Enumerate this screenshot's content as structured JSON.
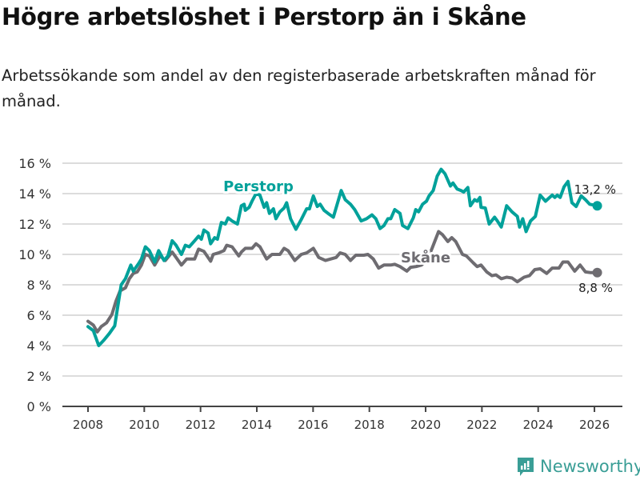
{
  "header": {
    "title": "Högre arbetslöshet i Perstorp än i Skåne",
    "subtitle": "Arbetssökande som andel av den registerbaserade arbetskraften månad för månad."
  },
  "logo": {
    "text": "Newsworthy",
    "icon": "bar-chart-icon",
    "color": "#3a9e96"
  },
  "chart_data": {
    "type": "line",
    "title": "Högre arbetslöshet i Perstorp än i Skåne",
    "xlabel": "",
    "ylabel": "",
    "xlim": [
      2007.5,
      2027
    ],
    "ylim": [
      0,
      16
    ],
    "grid": true,
    "x_ticks": [
      2008,
      2010,
      2012,
      2014,
      2016,
      2018,
      2020,
      2022,
      2024,
      2026
    ],
    "x_tick_labels": [
      "2008",
      "2010",
      "2012",
      "2014",
      "2016",
      "2018",
      "2020",
      "2022",
      "2024",
      "2026"
    ],
    "y_ticks": [
      0,
      2,
      4,
      6,
      8,
      10,
      12,
      14,
      16
    ],
    "y_tick_labels": [
      "0 %",
      "2 %",
      "4 %",
      "6 %",
      "8 %",
      "10 %",
      "12 %",
      "14 %",
      "16 %"
    ],
    "series": [
      {
        "name": "Perstorp",
        "color": "#00a19a",
        "end_label": "13,2 %",
        "x": [
          2008.0,
          2008.19,
          2008.38,
          2008.57,
          2008.76,
          2008.95,
          2009.18,
          2009.33,
          2009.52,
          2009.61,
          2009.8,
          2009.9,
          2010.04,
          2010.18,
          2010.37,
          2010.51,
          2010.7,
          2010.84,
          2010.99,
          2011.13,
          2011.32,
          2011.46,
          2011.6,
          2011.79,
          2011.93,
          2012.03,
          2012.12,
          2012.27,
          2012.36,
          2012.5,
          2012.6,
          2012.74,
          2012.88,
          2012.98,
          2013.12,
          2013.31,
          2013.45,
          2013.55,
          2013.59,
          2013.73,
          2013.83,
          2013.97,
          2014.11,
          2014.26,
          2014.35,
          2014.45,
          2014.59,
          2014.68,
          2014.82,
          2014.97,
          2015.06,
          2015.2,
          2015.39,
          2015.58,
          2015.77,
          2015.87,
          2016.01,
          2016.15,
          2016.25,
          2016.39,
          2016.53,
          2016.72,
          2017.0,
          2017.14,
          2017.33,
          2017.48,
          2017.71,
          2017.9,
          2018.09,
          2018.23,
          2018.38,
          2018.52,
          2018.66,
          2018.76,
          2018.9,
          2019.09,
          2019.18,
          2019.37,
          2019.56,
          2019.65,
          2019.75,
          2019.89,
          2020.03,
          2020.12,
          2020.27,
          2020.41,
          2020.55,
          2020.69,
          2020.88,
          2020.97,
          2021.12,
          2021.26,
          2021.35,
          2021.5,
          2021.59,
          2021.74,
          2021.83,
          2021.93,
          2021.97,
          2022.12,
          2022.26,
          2022.45,
          2022.55,
          2022.69,
          2022.88,
          2023.07,
          2023.26,
          2023.34,
          2023.45,
          2023.57,
          2023.73,
          2023.9,
          2024.07,
          2024.26,
          2024.5,
          2024.59,
          2024.68,
          2024.78,
          2024.92,
          2025.06,
          2025.2,
          2025.35,
          2025.53,
          2025.68,
          2025.83,
          2026.1
        ],
        "values": [
          5.25,
          4.98,
          4.0,
          4.37,
          4.8,
          5.3,
          8.0,
          8.4,
          9.3,
          8.9,
          9.4,
          9.7,
          10.5,
          10.25,
          9.5,
          10.25,
          9.6,
          9.9,
          10.9,
          10.6,
          10.0,
          10.6,
          10.5,
          10.9,
          11.2,
          11.0,
          11.6,
          11.4,
          10.7,
          11.1,
          11.0,
          12.1,
          12.0,
          12.4,
          12.2,
          12.0,
          13.2,
          13.3,
          12.9,
          13.1,
          13.5,
          14.0,
          13.9,
          13.1,
          13.4,
          12.7,
          13.0,
          12.35,
          12.8,
          13.05,
          13.4,
          12.35,
          11.65,
          12.3,
          13.0,
          13.0,
          13.85,
          13.15,
          13.3,
          12.9,
          12.7,
          12.45,
          14.2,
          13.6,
          13.3,
          12.95,
          12.2,
          12.35,
          12.6,
          12.35,
          11.7,
          11.9,
          12.35,
          12.35,
          12.95,
          12.7,
          11.9,
          11.7,
          12.4,
          12.95,
          12.8,
          13.3,
          13.5,
          13.85,
          14.2,
          15.15,
          15.6,
          15.3,
          14.5,
          14.7,
          14.3,
          14.2,
          14.1,
          14.4,
          13.2,
          13.6,
          13.5,
          13.75,
          13.1,
          13.05,
          12.0,
          12.45,
          12.2,
          11.8,
          13.2,
          12.8,
          12.5,
          11.8,
          12.35,
          11.5,
          12.2,
          12.5,
          13.9,
          13.5,
          13.9,
          13.75,
          13.9,
          13.75,
          14.45,
          14.8,
          13.4,
          13.15,
          13.85,
          13.6,
          13.3,
          13.2
        ]
      },
      {
        "name": "Skåne",
        "color": "#6e6c71",
        "end_label": "8,8 %",
        "x": [
          2008.0,
          2008.19,
          2008.33,
          2008.47,
          2008.66,
          2008.85,
          2008.99,
          2009.14,
          2009.33,
          2009.47,
          2009.61,
          2009.75,
          2009.9,
          2010.04,
          2010.18,
          2010.37,
          2010.56,
          2010.75,
          2010.99,
          2011.13,
          2011.32,
          2011.51,
          2011.79,
          2011.93,
          2012.12,
          2012.36,
          2012.45,
          2012.64,
          2012.83,
          2012.93,
          2013.12,
          2013.36,
          2013.45,
          2013.59,
          2013.83,
          2013.97,
          2014.11,
          2014.35,
          2014.54,
          2014.73,
          2014.82,
          2014.97,
          2015.11,
          2015.35,
          2015.58,
          2015.77,
          2016.01,
          2016.2,
          2016.44,
          2016.63,
          2016.82,
          2016.96,
          2017.14,
          2017.33,
          2017.52,
          2017.8,
          2017.95,
          2018.14,
          2018.33,
          2018.52,
          2018.76,
          2018.9,
          2019.09,
          2019.33,
          2019.47,
          2019.66,
          2019.85,
          2020.05,
          2020.23,
          2020.46,
          2020.6,
          2020.79,
          2020.93,
          2021.07,
          2021.31,
          2021.45,
          2021.69,
          2021.83,
          2021.97,
          2022.17,
          2022.36,
          2022.5,
          2022.69,
          2022.88,
          2023.07,
          2023.26,
          2023.5,
          2023.69,
          2023.88,
          2024.07,
          2024.3,
          2024.5,
          2024.74,
          2024.88,
          2025.06,
          2025.3,
          2025.49,
          2025.68,
          2025.87,
          2026.1
        ],
        "values": [
          5.6,
          5.35,
          4.9,
          5.25,
          5.5,
          6.05,
          6.9,
          7.6,
          7.8,
          8.4,
          8.75,
          8.85,
          9.3,
          10.0,
          9.9,
          9.3,
          9.9,
          9.6,
          10.15,
          9.8,
          9.3,
          9.7,
          9.7,
          10.35,
          10.2,
          9.55,
          10.0,
          10.1,
          10.25,
          10.6,
          10.5,
          9.9,
          10.15,
          10.4,
          10.4,
          10.7,
          10.5,
          9.7,
          10.0,
          10.0,
          10.0,
          10.4,
          10.25,
          9.6,
          10.0,
          10.1,
          10.4,
          9.8,
          9.6,
          9.7,
          9.8,
          10.1,
          10.0,
          9.6,
          9.95,
          9.95,
          10.0,
          9.7,
          9.1,
          9.3,
          9.3,
          9.35,
          9.2,
          8.9,
          9.15,
          9.2,
          9.3,
          9.6,
          10.4,
          11.5,
          11.3,
          10.85,
          11.1,
          10.85,
          10.0,
          9.9,
          9.45,
          9.2,
          9.3,
          8.85,
          8.6,
          8.65,
          8.4,
          8.5,
          8.45,
          8.2,
          8.5,
          8.6,
          9.0,
          9.05,
          8.75,
          9.1,
          9.1,
          9.5,
          9.5,
          8.9,
          9.3,
          8.85,
          8.8,
          8.8
        ]
      }
    ]
  }
}
